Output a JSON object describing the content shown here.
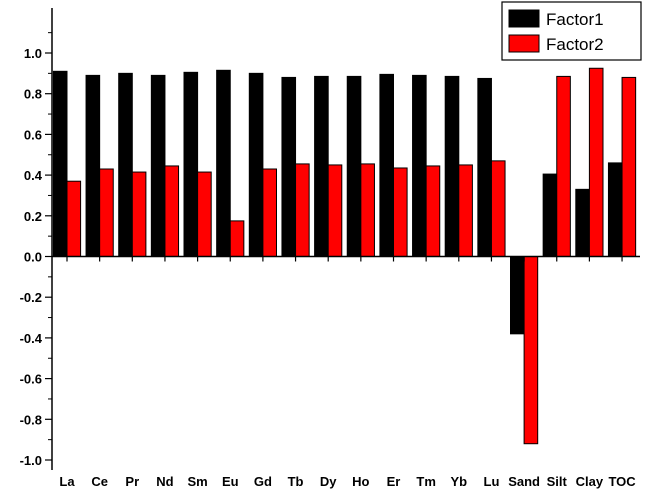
{
  "chart_data": {
    "type": "bar",
    "categories": [
      "La",
      "Ce",
      "Pr",
      "Nd",
      "Sm",
      "Eu",
      "Gd",
      "Tb",
      "Dy",
      "Ho",
      "Er",
      "Tm",
      "Yb",
      "Lu",
      "Sand",
      "Silt",
      "Clay",
      "TOC"
    ],
    "series": [
      {
        "name": "Factor1",
        "color": "#000000",
        "values": [
          0.91,
          0.89,
          0.9,
          0.89,
          0.905,
          0.915,
          0.9,
          0.88,
          0.885,
          0.885,
          0.895,
          0.89,
          0.885,
          0.875,
          -0.38,
          0.405,
          0.33,
          0.46
        ]
      },
      {
        "name": "Factor2",
        "color": "#ff0000",
        "values": [
          0.37,
          0.43,
          0.415,
          0.445,
          0.415,
          0.175,
          0.43,
          0.455,
          0.45,
          0.455,
          0.435,
          0.445,
          0.45,
          0.47,
          -0.92,
          0.885,
          0.925,
          0.88
        ]
      }
    ],
    "ylim": [
      -1.05,
      1.1
    ],
    "yticks": [
      "1.0",
      "0.8",
      "0.6",
      "0.4",
      "0.2",
      "0.0",
      "-0.2",
      "-0.4",
      "-0.6",
      "-0.8",
      "-1.0"
    ],
    "ytick_values": [
      1.0,
      0.8,
      0.6,
      0.4,
      0.2,
      0.0,
      -0.2,
      -0.4,
      -0.6,
      -0.8,
      -1.0
    ],
    "legend_position": "top-right",
    "grid": false
  }
}
